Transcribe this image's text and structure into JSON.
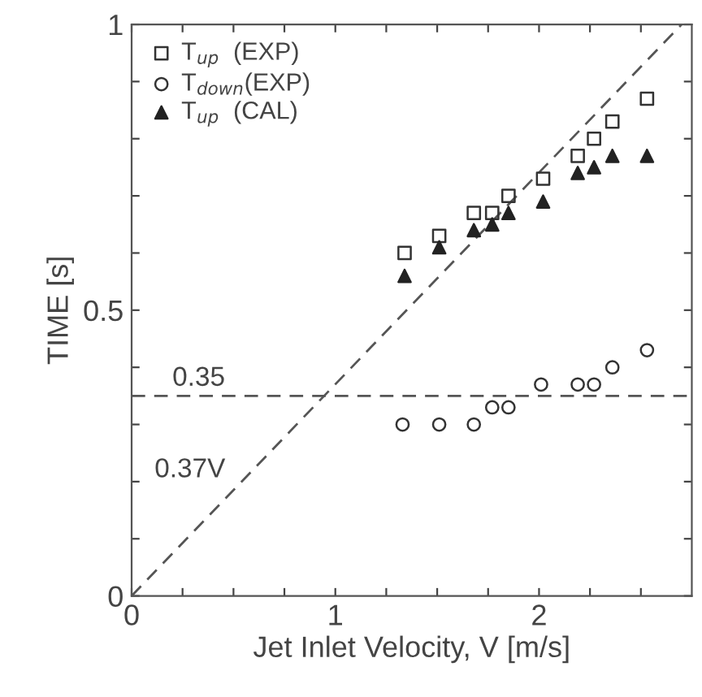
{
  "chart_data": {
    "type": "scatter",
    "xlabel": "Jet Inlet Velocity, V [m/s]",
    "ylabel": "TIME [s]",
    "xlim": [
      0,
      2.75
    ],
    "ylim": [
      0,
      1
    ],
    "xticks": [
      0,
      {
        "value": 0.25,
        "label": null
      },
      {
        "value": 0.5,
        "label": null
      },
      {
        "value": 0.75,
        "label": null
      },
      1,
      {
        "value": 1.25,
        "label": null
      },
      {
        "value": 1.5,
        "label": null
      },
      {
        "value": 1.75,
        "label": null
      },
      2,
      {
        "value": 2.25,
        "label": null
      },
      {
        "value": 2.5,
        "label": null
      }
    ],
    "yticks": [
      0,
      {
        "value": 0.1,
        "label": null
      },
      {
        "value": 0.2,
        "label": null
      },
      {
        "value": 0.3,
        "label": null
      },
      {
        "value": 0.4,
        "label": null
      },
      0.5,
      {
        "value": 0.6,
        "label": null
      },
      {
        "value": 0.7,
        "label": null
      },
      {
        "value": 0.8,
        "label": null
      },
      {
        "value": 0.9,
        "label": null
      },
      1
    ],
    "grid": false,
    "legend": "top left",
    "series": [
      {
        "name": "T$_{up}$  (EXP)",
        "color": "#333333",
        "marker": "square",
        "x": [
          1.34,
          1.51,
          1.68,
          1.77,
          1.85,
          2.02,
          2.19,
          2.27,
          2.36,
          2.53
        ],
        "values": [
          0.6,
          0.63,
          0.67,
          0.67,
          0.7,
          0.73,
          0.77,
          0.8,
          0.83,
          0.87
        ]
      },
      {
        "name": "T$_{down}$(EXP)",
        "color": "#333333",
        "marker": "circle",
        "x": [
          1.33,
          1.51,
          1.68,
          1.77,
          1.85,
          2.01,
          2.19,
          2.27,
          2.36,
          2.53
        ],
        "values": [
          0.3,
          0.3,
          0.3,
          0.33,
          0.33,
          0.37,
          0.37,
          0.37,
          0.4,
          0.43
        ]
      },
      {
        "name": "T$_{up}$  (CAL)",
        "color": "#222222",
        "marker": "triangle",
        "x": [
          1.34,
          1.51,
          1.68,
          1.77,
          1.85,
          2.02,
          2.19,
          2.27,
          2.36,
          2.53
        ],
        "values": [
          0.56,
          0.61,
          0.64,
          0.65,
          0.67,
          0.69,
          0.74,
          0.75,
          0.77,
          0.77
        ]
      },
      {
        "type": "line",
        "name": "0.37V",
        "color": "#555555",
        "line_style": "dashed",
        "marker": "none",
        "x": [
          0,
          2.7
        ],
        "values": [
          0,
          1
        ]
      }
    ],
    "ref_lines": [
      {
        "axis": "y",
        "value": 0.35,
        "label": "0.35",
        "color": "#555555",
        "line_style": "dashed"
      }
    ]
  }
}
